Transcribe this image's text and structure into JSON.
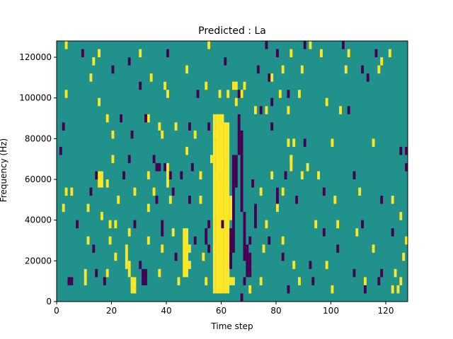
{
  "chart_data": {
    "type": "heatmap",
    "title": "Predicted : La",
    "xlabel": "Time step",
    "ylabel": "Frequency (Hz)",
    "xlim": [
      0,
      128
    ],
    "ylim": [
      0,
      128000
    ],
    "x_ticks": [
      0,
      20,
      40,
      60,
      80,
      100,
      120
    ],
    "y_ticks": [
      0,
      20000,
      40000,
      60000,
      80000,
      100000,
      120000
    ],
    "x_tick_labels": [
      "0",
      "20",
      "40",
      "60",
      "80",
      "100",
      "120"
    ],
    "y_tick_labels": [
      "0",
      "20000",
      "40000",
      "60000",
      "80000",
      "100000",
      "120000"
    ],
    "colormap": "viridis",
    "colors": {
      "low": "#440154",
      "mid": "#21918c",
      "high": "#fde725"
    },
    "background_value": 0,
    "row_height_hz": 4000,
    "cells": [
      {
        "t": 3,
        "f": 124000,
        "v": 1
      },
      {
        "t": 9,
        "f": 120000,
        "v": -1
      },
      {
        "t": 15,
        "f": 120000,
        "v": 1
      },
      {
        "t": 30,
        "f": 120000,
        "v": 1
      },
      {
        "t": 40,
        "f": 120000,
        "v": -1
      },
      {
        "t": 55,
        "f": 124000,
        "v": 1
      },
      {
        "t": 76,
        "f": 124000,
        "v": -1
      },
      {
        "t": 80,
        "f": 120000,
        "v": -1
      },
      {
        "t": 85,
        "f": 120000,
        "v": 1
      },
      {
        "t": 90,
        "f": 124000,
        "v": -1
      },
      {
        "t": 92,
        "f": 124000,
        "v": 1
      },
      {
        "t": 96,
        "f": 120000,
        "v": 1
      },
      {
        "t": 104,
        "f": 124000,
        "v": -1
      },
      {
        "t": 106,
        "f": 120000,
        "v": 1
      },
      {
        "t": 116,
        "f": 120000,
        "v": -1
      },
      {
        "t": 118,
        "f": 116000,
        "v": 1
      },
      {
        "t": 121,
        "f": 120000,
        "v": 1
      },
      {
        "t": 13,
        "f": 116000,
        "v": 1
      },
      {
        "t": 20,
        "f": 112000,
        "v": -1
      },
      {
        "t": 26,
        "f": 116000,
        "v": -1
      },
      {
        "t": 34,
        "f": 108000,
        "v": 1
      },
      {
        "t": 47,
        "f": 112000,
        "v": 1
      },
      {
        "t": 61,
        "f": 116000,
        "v": -1
      },
      {
        "t": 73,
        "f": 112000,
        "v": -1
      },
      {
        "t": 77,
        "f": 108000,
        "v": -1
      },
      {
        "t": 82,
        "f": 112000,
        "v": 1
      },
      {
        "t": 89,
        "f": 112000,
        "v": 1
      },
      {
        "t": 105,
        "f": 112000,
        "v": 1
      },
      {
        "t": 111,
        "f": 112000,
        "v": -1
      },
      {
        "t": 113,
        "f": 108000,
        "v": -1
      },
      {
        "t": 117,
        "f": 112000,
        "v": 1
      },
      {
        "t": 12,
        "f": 108000,
        "v": 1
      },
      {
        "t": 30,
        "f": 104000,
        "v": -1
      },
      {
        "t": 39,
        "f": 104000,
        "v": 1
      },
      {
        "t": 54,
        "f": 104000,
        "v": 1
      },
      {
        "t": 68,
        "f": 104000,
        "v": 1
      },
      {
        "t": 78,
        "f": 108000,
        "v": 1
      },
      {
        "t": 84,
        "f": 100000,
        "v": -1
      },
      {
        "t": 3,
        "f": 100000,
        "v": 1
      },
      {
        "t": 15,
        "f": 96000,
        "v": 1
      },
      {
        "t": 40,
        "f": 100000,
        "v": 1
      },
      {
        "t": 51,
        "f": 100000,
        "v": -1
      },
      {
        "t": 59,
        "f": 100000,
        "v": 1
      },
      {
        "t": 62,
        "f": 100000,
        "v": 1
      },
      {
        "t": 67,
        "f": 100000,
        "v": 1
      },
      {
        "t": 81,
        "f": 100000,
        "v": 1
      },
      {
        "t": 88,
        "f": 100000,
        "v": 1
      },
      {
        "t": 98,
        "f": 96000,
        "v": 1
      },
      {
        "t": 65,
        "f": 96000,
        "v": 1
      },
      {
        "t": 72,
        "f": 92000,
        "v": 1
      },
      {
        "t": 74,
        "f": 92000,
        "v": -1
      },
      {
        "t": 76,
        "f": 92000,
        "v": 1
      },
      {
        "t": 103,
        "f": 92000,
        "v": 1
      },
      {
        "t": 106,
        "f": 92000,
        "v": -1
      },
      {
        "t": 18,
        "f": 88000,
        "v": 1
      },
      {
        "t": 23,
        "f": 88000,
        "v": -1
      },
      {
        "t": 33,
        "f": 88000,
        "v": 1
      },
      {
        "t": 37,
        "f": 84000,
        "v": 1
      },
      {
        "t": 38,
        "f": 80000,
        "v": 1
      },
      {
        "t": 43,
        "f": 84000,
        "v": 1
      },
      {
        "t": 48,
        "f": 84000,
        "v": -1
      },
      {
        "t": 50,
        "f": 80000,
        "v": 1
      },
      {
        "t": 55,
        "f": 84000,
        "v": -1
      },
      {
        "t": 57,
        "f": 80000,
        "v": 1
      },
      {
        "t": 78,
        "f": 84000,
        "v": -1
      },
      {
        "t": 2,
        "f": 84000,
        "v": -1
      },
      {
        "t": 20,
        "f": 80000,
        "v": 1
      },
      {
        "t": 27,
        "f": 80000,
        "v": -1
      },
      {
        "t": 32,
        "f": 88000,
        "v": -1
      },
      {
        "t": 84,
        "f": 76000,
        "v": 1
      },
      {
        "t": 86,
        "f": 76000,
        "v": 1
      },
      {
        "t": 90,
        "f": 76000,
        "v": -1
      },
      {
        "t": 100,
        "f": 76000,
        "v": 1
      },
      {
        "t": 115,
        "f": 76000,
        "v": 1
      },
      {
        "t": 1,
        "f": 72000,
        "v": -1
      },
      {
        "t": 20,
        "f": 68000,
        "v": 1
      },
      {
        "t": 26,
        "f": 68000,
        "v": -1
      },
      {
        "t": 35,
        "f": 68000,
        "v": -1
      },
      {
        "t": 47,
        "f": 72000,
        "v": 1
      },
      {
        "t": 49,
        "f": 64000,
        "v": -1
      },
      {
        "t": 56,
        "f": 68000,
        "v": 1
      },
      {
        "t": 85,
        "f": 68000,
        "v": 1
      },
      {
        "t": 91,
        "f": 64000,
        "v": 1
      },
      {
        "t": 125,
        "f": 72000,
        "v": -1
      },
      {
        "t": 127,
        "f": 72000,
        "v": -1
      },
      {
        "t": 14,
        "f": 60000,
        "v": -1
      },
      {
        "t": 18,
        "f": 56000,
        "v": 1
      },
      {
        "t": 24,
        "f": 60000,
        "v": -1
      },
      {
        "t": 33,
        "f": 60000,
        "v": 1
      },
      {
        "t": 39,
        "f": 64000,
        "v": -1
      },
      {
        "t": 45,
        "f": 60000,
        "v": -1
      },
      {
        "t": 52,
        "f": 60000,
        "v": 1
      },
      {
        "t": 78,
        "f": 60000,
        "v": 1
      },
      {
        "t": 83,
        "f": 60000,
        "v": -1
      },
      {
        "t": 89,
        "f": 60000,
        "v": 1
      },
      {
        "t": 95,
        "f": 60000,
        "v": 1
      },
      {
        "t": 108,
        "f": 60000,
        "v": -1
      },
      {
        "t": 127,
        "f": 64000,
        "v": -1
      },
      {
        "t": 3,
        "f": 52000,
        "v": 1
      },
      {
        "t": 5,
        "f": 52000,
        "v": 1
      },
      {
        "t": 12,
        "f": 52000,
        "v": -1
      },
      {
        "t": 28,
        "f": 52000,
        "v": 1
      },
      {
        "t": 35,
        "f": 52000,
        "v": 1
      },
      {
        "t": 42,
        "f": 52000,
        "v": -1
      },
      {
        "t": 71,
        "f": 56000,
        "v": -1
      },
      {
        "t": 74,
        "f": 52000,
        "v": 1
      },
      {
        "t": 82,
        "f": 52000,
        "v": 1
      },
      {
        "t": 97,
        "f": 52000,
        "v": -1
      },
      {
        "t": 110,
        "f": 52000,
        "v": 1
      },
      {
        "t": 2,
        "f": 44000,
        "v": 1
      },
      {
        "t": 11,
        "f": 44000,
        "v": 1
      },
      {
        "t": 22,
        "f": 48000,
        "v": 1
      },
      {
        "t": 33,
        "f": 44000,
        "v": 1
      },
      {
        "t": 36,
        "f": 48000,
        "v": -1
      },
      {
        "t": 41,
        "f": 48000,
        "v": 1
      },
      {
        "t": 48,
        "f": 48000,
        "v": -1
      },
      {
        "t": 52,
        "f": 48000,
        "v": 1
      },
      {
        "t": 80,
        "f": 44000,
        "v": 1
      },
      {
        "t": 87,
        "f": 48000,
        "v": -1
      },
      {
        "t": 101,
        "f": 48000,
        "v": 1
      },
      {
        "t": 118,
        "f": 48000,
        "v": -1
      },
      {
        "t": 122,
        "f": 48000,
        "v": 1
      },
      {
        "t": 7,
        "f": 36000,
        "v": -1
      },
      {
        "t": 16,
        "f": 40000,
        "v": 1
      },
      {
        "t": 19,
        "f": 36000,
        "v": 1
      },
      {
        "t": 21,
        "f": 36000,
        "v": 1
      },
      {
        "t": 28,
        "f": 36000,
        "v": -1
      },
      {
        "t": 38,
        "f": 36000,
        "v": -1
      },
      {
        "t": 55,
        "f": 36000,
        "v": -1
      },
      {
        "t": 60,
        "f": 36000,
        "v": -1
      },
      {
        "t": 76,
        "f": 36000,
        "v": 1
      },
      {
        "t": 94,
        "f": 36000,
        "v": 1
      },
      {
        "t": 102,
        "f": 36000,
        "v": 1
      },
      {
        "t": 111,
        "f": 36000,
        "v": -1
      },
      {
        "t": 125,
        "f": 40000,
        "v": 1
      },
      {
        "t": 11,
        "f": 28000,
        "v": 1
      },
      {
        "t": 26,
        "f": 32000,
        "v": 1
      },
      {
        "t": 33,
        "f": 28000,
        "v": 1
      },
      {
        "t": 38,
        "f": 32000,
        "v": -1
      },
      {
        "t": 42,
        "f": 32000,
        "v": 1
      },
      {
        "t": 50,
        "f": 28000,
        "v": -1
      },
      {
        "t": 70,
        "f": 28000,
        "v": -1
      },
      {
        "t": 77,
        "f": 28000,
        "v": -1
      },
      {
        "t": 82,
        "f": 28000,
        "v": 1
      },
      {
        "t": 97,
        "f": 32000,
        "v": -1
      },
      {
        "t": 109,
        "f": 32000,
        "v": 1
      },
      {
        "t": 122,
        "f": 32000,
        "v": -1
      },
      {
        "t": 127,
        "f": 28000,
        "v": 1
      },
      {
        "t": 13,
        "f": 24000,
        "v": -1
      },
      {
        "t": 19,
        "f": 28000,
        "v": 1
      },
      {
        "t": 21,
        "f": 20000,
        "v": 1
      },
      {
        "t": 38,
        "f": 24000,
        "v": 1
      },
      {
        "t": 43,
        "f": 20000,
        "v": -1
      },
      {
        "t": 48,
        "f": 24000,
        "v": 1
      },
      {
        "t": 53,
        "f": 20000,
        "v": 1
      },
      {
        "t": 57,
        "f": 24000,
        "v": 1
      },
      {
        "t": 75,
        "f": 24000,
        "v": 1
      },
      {
        "t": 82,
        "f": 20000,
        "v": -1
      },
      {
        "t": 102,
        "f": 24000,
        "v": -1
      },
      {
        "t": 115,
        "f": 24000,
        "v": 1
      },
      {
        "t": 126,
        "f": 20000,
        "v": 1
      },
      {
        "t": 10,
        "f": 12000,
        "v": 1
      },
      {
        "t": 14,
        "f": 12000,
        "v": -1
      },
      {
        "t": 18,
        "f": 12000,
        "v": 1
      },
      {
        "t": 30,
        "f": 16000,
        "v": -1
      },
      {
        "t": 37,
        "f": 12000,
        "v": 1
      },
      {
        "t": 47,
        "f": 16000,
        "v": 1
      },
      {
        "t": 70,
        "f": 12000,
        "v": -1
      },
      {
        "t": 86,
        "f": 16000,
        "v": 1
      },
      {
        "t": 92,
        "f": 16000,
        "v": -1
      },
      {
        "t": 98,
        "f": 16000,
        "v": 1
      },
      {
        "t": 108,
        "f": 12000,
        "v": -1
      },
      {
        "t": 118,
        "f": 12000,
        "v": -1
      },
      {
        "t": 123,
        "f": 12000,
        "v": 1
      },
      {
        "t": 4,
        "f": 8000,
        "v": -1
      },
      {
        "t": 5,
        "f": 8000,
        "v": -1
      },
      {
        "t": 10,
        "f": 8000,
        "v": 1
      },
      {
        "t": 17,
        "f": 8000,
        "v": -1
      },
      {
        "t": 27,
        "f": 8000,
        "v": 1
      },
      {
        "t": 44,
        "f": 8000,
        "v": 1
      },
      {
        "t": 54,
        "f": 8000,
        "v": 1
      },
      {
        "t": 63,
        "f": 8000,
        "v": 1
      },
      {
        "t": 68,
        "f": 8000,
        "v": -1
      },
      {
        "t": 74,
        "f": 8000,
        "v": 1
      },
      {
        "t": 88,
        "f": 8000,
        "v": 1
      },
      {
        "t": 93,
        "f": 8000,
        "v": -1
      },
      {
        "t": 112,
        "f": 8000,
        "v": 1
      },
      {
        "t": 117,
        "f": 8000,
        "v": -1
      },
      {
        "t": 122,
        "f": 4000,
        "v": 1
      },
      {
        "t": 125,
        "f": 8000,
        "v": 1
      },
      {
        "t": 67,
        "f": 0,
        "v": -1
      },
      {
        "t": 70,
        "f": 4000,
        "v": 1
      },
      {
        "t": 84,
        "f": 4000,
        "v": -1
      },
      {
        "t": 100,
        "f": 4000,
        "v": 1
      },
      {
        "t": 112,
        "f": 4000,
        "v": -1
      },
      {
        "t": 124,
        "f": 4000,
        "v": 1
      },
      {
        "t": 64,
        "f": 104000,
        "v": 1
      },
      {
        "t": 65,
        "f": 104000,
        "v": 1
      },
      {
        "t": 66,
        "f": 100000,
        "v": -1
      }
    ],
    "bands": [
      {
        "t0": 57,
        "t1": 58,
        "f0": 4000,
        "f1": 92000,
        "v": 1
      },
      {
        "t0": 58,
        "t1": 61,
        "f0": 4000,
        "f1": 92000,
        "v": 1
      },
      {
        "t0": 61,
        "t1": 63,
        "f0": 4000,
        "f1": 88000,
        "v": 1
      },
      {
        "t0": 63,
        "t1": 64,
        "f0": 16000,
        "f1": 36000,
        "v": -1
      },
      {
        "t0": 64,
        "t1": 65,
        "f0": 24000,
        "f1": 72000,
        "v": -1
      },
      {
        "t0": 65,
        "t1": 66,
        "f0": 56000,
        "f1": 72000,
        "v": -1
      },
      {
        "t0": 66,
        "t1": 67,
        "f0": 72000,
        "f1": 92000,
        "v": -1
      },
      {
        "t0": 67,
        "t1": 68,
        "f0": 44000,
        "f1": 84000,
        "v": -1
      },
      {
        "t0": 68,
        "t1": 69,
        "f0": 20000,
        "f1": 44000,
        "v": -1
      },
      {
        "t0": 69,
        "t1": 70,
        "f0": 12000,
        "f1": 28000,
        "v": -1
      },
      {
        "t0": 70,
        "t1": 71,
        "f0": 12000,
        "f1": 24000,
        "v": -1
      },
      {
        "t0": 62,
        "t1": 63,
        "f0": 8000,
        "f1": 16000,
        "v": 1
      },
      {
        "t0": 64,
        "t1": 65,
        "f0": 8000,
        "f1": 12000,
        "v": 1
      },
      {
        "t0": 62,
        "t1": 63,
        "f0": 24000,
        "f1": 40000,
        "v": 1
      },
      {
        "t0": 63,
        "t1": 64,
        "f0": 40000,
        "f1": 52000,
        "v": 1
      },
      {
        "t0": 54,
        "t1": 55,
        "f0": 28000,
        "f1": 36000,
        "v": -1
      },
      {
        "t0": 55,
        "t1": 56,
        "f0": 24000,
        "f1": 28000,
        "v": -1
      },
      {
        "t0": 58,
        "t1": 59,
        "f0": 48000,
        "f1": 64000,
        "v": 1
      },
      {
        "t0": 59,
        "t1": 60,
        "f0": 36000,
        "f1": 56000,
        "v": 1
      },
      {
        "t0": 61,
        "t1": 62,
        "f0": 56000,
        "f1": 72000,
        "v": 1
      },
      {
        "t0": 27,
        "t1": 29,
        "f0": 4000,
        "f1": 12000,
        "v": 1
      },
      {
        "t0": 31,
        "t1": 33,
        "f0": 8000,
        "f1": 16000,
        "v": -1
      },
      {
        "t0": 46,
        "t1": 48,
        "f0": 12000,
        "f1": 36000,
        "v": 1
      },
      {
        "t0": 48,
        "t1": 49,
        "f0": 16000,
        "f1": 20000,
        "v": 1
      },
      {
        "t0": 36,
        "t1": 38,
        "f0": 64000,
        "f1": 68000,
        "v": -1
      },
      {
        "t0": 25,
        "t1": 26,
        "f0": 16000,
        "f1": 28000,
        "v": 1
      },
      {
        "t0": 15,
        "t1": 17,
        "f0": 56000,
        "f1": 64000,
        "v": 1
      },
      {
        "t0": 26,
        "t1": 27,
        "f0": 12000,
        "f1": 20000,
        "v": 1
      },
      {
        "t0": 40,
        "t1": 41,
        "f0": 56000,
        "f1": 68000,
        "v": 1
      },
      {
        "t0": 41,
        "t1": 42,
        "f0": 60000,
        "f1": 64000,
        "v": -1
      },
      {
        "t0": 72,
        "t1": 73,
        "f0": 36000,
        "f1": 48000,
        "v": -1
      },
      {
        "t0": 80,
        "t1": 81,
        "f0": 48000,
        "f1": 56000,
        "v": -1
      },
      {
        "t0": 85,
        "t1": 86,
        "f0": 64000,
        "f1": 72000,
        "v": 1
      },
      {
        "t0": 84,
        "t1": 85,
        "f0": 92000,
        "f1": 96000,
        "v": 1
      },
      {
        "t0": 78,
        "t1": 79,
        "f0": 96000,
        "f1": 100000,
        "v": -1
      }
    ]
  }
}
